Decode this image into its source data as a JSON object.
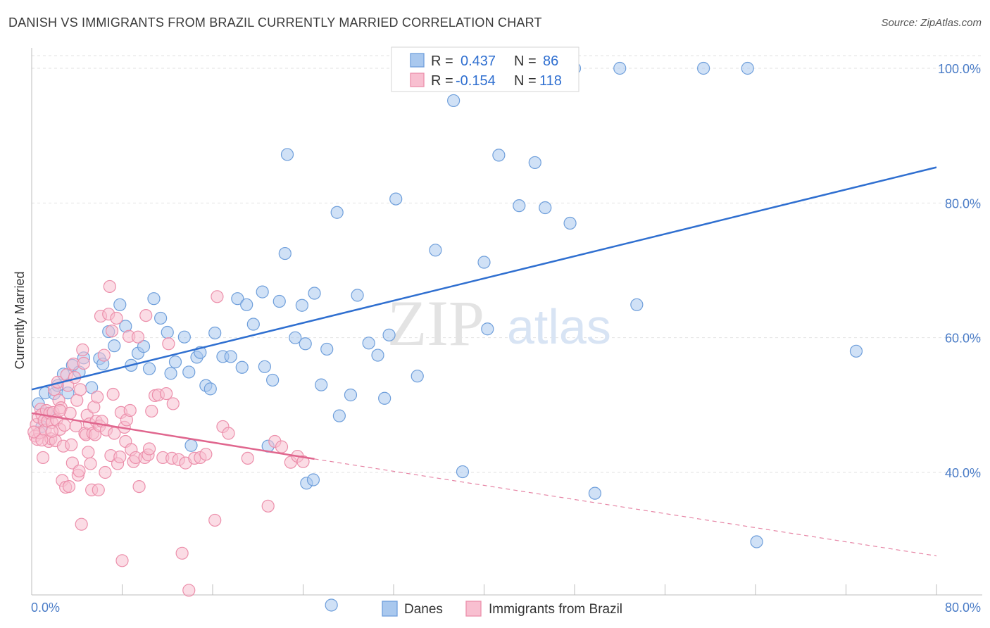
{
  "header": {
    "title": "DANISH VS IMMIGRANTS FROM BRAZIL CURRENTLY MARRIED CORRELATION CHART",
    "source": "Source: ZipAtlas.com"
  },
  "watermark": {
    "zip": "ZIP",
    "atlas": "atlas"
  },
  "legend_box": {
    "rows": [
      {
        "r_label": "R = ",
        "r_value": "0.437",
        "n_label": "N = ",
        "n_value": "86",
        "color": "#a9c8ee",
        "stroke": "#6f9fdb"
      },
      {
        "r_label": "R = ",
        "r_value": "-0.154",
        "n_label": "N = ",
        "n_value": "118",
        "color": "#f8bfd0",
        "stroke": "#ec8fab"
      }
    ]
  },
  "bottom_legend": [
    {
      "label": "Danes",
      "color": "#a9c8ee",
      "stroke": "#6f9fdb"
    },
    {
      "label": "Immigrants from Brazil",
      "color": "#f8bfd0",
      "stroke": "#ec8fab"
    }
  ],
  "chart_data": {
    "type": "scatter",
    "title": "DANISH VS IMMIGRANTS FROM BRAZIL CURRENTLY MARRIED CORRELATION CHART",
    "xlabel": "",
    "ylabel": "Currently Married",
    "xlim": [
      0,
      80
    ],
    "ylim": [
      20,
      102
    ],
    "x_tick_labels": [
      "0.0%",
      "80.0%"
    ],
    "y_ticks": [
      40,
      60,
      80,
      100
    ],
    "y_tick_labels": [
      "40.0%",
      "60.0%",
      "80.0%",
      "100.0%"
    ],
    "grid": true,
    "legend_position": "top-center",
    "series": [
      {
        "name": "Danes",
        "color": "#6f9fdb",
        "fill": "#a9c8ee",
        "r": 0.437,
        "n": 86,
        "trend": {
          "x": [
            0,
            80
          ],
          "y": [
            52.3,
            85.3
          ],
          "style": "solid",
          "color": "#2f6fd0"
        },
        "points": [
          [
            0.6,
            50.2
          ],
          [
            0.9,
            46.8
          ],
          [
            1.2,
            51.8
          ],
          [
            1.4,
            48.8
          ],
          [
            2.0,
            51.7
          ],
          [
            2.3,
            52.9
          ],
          [
            2.8,
            54.6
          ],
          [
            3.2,
            51.8
          ],
          [
            3.6,
            55.9
          ],
          [
            4.2,
            54.9
          ],
          [
            4.6,
            57.0
          ],
          [
            5.3,
            52.6
          ],
          [
            6.0,
            56.9
          ],
          [
            6.3,
            56.1
          ],
          [
            6.8,
            60.9
          ],
          [
            7.3,
            58.8
          ],
          [
            7.8,
            64.9
          ],
          [
            8.3,
            61.7
          ],
          [
            8.8,
            55.9
          ],
          [
            9.4,
            57.7
          ],
          [
            9.9,
            58.7
          ],
          [
            10.4,
            55.4
          ],
          [
            10.8,
            65.8
          ],
          [
            11.4,
            62.9
          ],
          [
            12.3,
            54.7
          ],
          [
            12.0,
            60.8
          ],
          [
            12.7,
            56.4
          ],
          [
            13.5,
            60.1
          ],
          [
            13.9,
            54.9
          ],
          [
            14.6,
            57.1
          ],
          [
            14.9,
            57.8
          ],
          [
            15.4,
            52.9
          ],
          [
            15.8,
            52.4
          ],
          [
            16.2,
            60.7
          ],
          [
            16.9,
            57.2
          ],
          [
            17.6,
            57.2
          ],
          [
            18.2,
            65.8
          ],
          [
            18.6,
            55.6
          ],
          [
            19.0,
            64.9
          ],
          [
            19.6,
            62.0
          ],
          [
            20.4,
            66.8
          ],
          [
            20.6,
            55.7
          ],
          [
            21.3,
            53.7
          ],
          [
            21.9,
            65.4
          ],
          [
            22.4,
            72.5
          ],
          [
            22.6,
            87.2
          ],
          [
            23.3,
            60.0
          ],
          [
            23.9,
            64.8
          ],
          [
            24.2,
            59.1
          ],
          [
            25.0,
            66.6
          ],
          [
            25.6,
            53.0
          ],
          [
            26.1,
            58.3
          ],
          [
            27.0,
            78.6
          ],
          [
            27.2,
            48.4
          ],
          [
            28.2,
            51.5
          ],
          [
            28.8,
            66.3
          ],
          [
            29.8,
            59.2
          ],
          [
            30.6,
            57.4
          ],
          [
            31.2,
            51.0
          ],
          [
            31.6,
            60.4
          ],
          [
            32.2,
            80.6
          ],
          [
            34.1,
            54.3
          ],
          [
            35.7,
            73.0
          ],
          [
            37.3,
            95.2
          ],
          [
            38.1,
            40.1
          ],
          [
            40.0,
            71.2
          ],
          [
            40.3,
            61.3
          ],
          [
            41.3,
            87.1
          ],
          [
            43.1,
            79.6
          ],
          [
            44.5,
            86.0
          ],
          [
            45.4,
            79.3
          ],
          [
            47.6,
            77.0
          ],
          [
            48.0,
            100.0
          ],
          [
            49.8,
            36.9
          ],
          [
            52.0,
            100.0
          ],
          [
            53.5,
            64.9
          ],
          [
            59.4,
            100.0
          ],
          [
            63.3,
            100.0
          ],
          [
            64.1,
            29.7
          ],
          [
            72.9,
            58.0
          ],
          [
            24.3,
            38.4
          ],
          [
            24.9,
            38.9
          ],
          [
            26.5,
            20.3
          ],
          [
            14.1,
            44.0
          ],
          [
            42.5,
            100.0
          ],
          [
            20.9,
            43.9
          ]
        ]
      },
      {
        "name": "Immigrants from Brazil",
        "color": "#ec8fab",
        "fill": "#f8bfd0",
        "r": -0.154,
        "n": 118,
        "trend": {
          "x": [
            0,
            25
          ],
          "y": [
            48.8,
            42.0
          ],
          "style": "solid",
          "color": "#e0668e"
        },
        "trend_extension": {
          "x": [
            25,
            80
          ],
          "y": [
            42.0,
            27.6
          ],
          "style": "dashed",
          "color": "#e0668e"
        },
        "points": [
          [
            0.3,
            45.4
          ],
          [
            0.4,
            47.1
          ],
          [
            0.5,
            44.9
          ],
          [
            0.6,
            48.2
          ],
          [
            0.7,
            45.9
          ],
          [
            0.8,
            49.4
          ],
          [
            0.9,
            48.6
          ],
          [
            1.0,
            42.2
          ],
          [
            1.1,
            47.7
          ],
          [
            1.2,
            46.3
          ],
          [
            1.3,
            49.2
          ],
          [
            1.4,
            47.6
          ],
          [
            1.5,
            44.6
          ],
          [
            1.6,
            48.8
          ],
          [
            1.7,
            45.0
          ],
          [
            1.8,
            47.4
          ],
          [
            1.9,
            48.9
          ],
          [
            2.0,
            52.3
          ],
          [
            2.1,
            44.7
          ],
          [
            2.2,
            47.8
          ],
          [
            2.3,
            53.4
          ],
          [
            2.4,
            50.7
          ],
          [
            2.5,
            46.4
          ],
          [
            2.6,
            49.6
          ],
          [
            2.7,
            38.8
          ],
          [
            2.8,
            43.9
          ],
          [
            2.9,
            47.0
          ],
          [
            3.0,
            37.8
          ],
          [
            3.1,
            54.5
          ],
          [
            3.2,
            52.9
          ],
          [
            3.3,
            37.9
          ],
          [
            3.4,
            48.8
          ],
          [
            3.5,
            44.1
          ],
          [
            3.6,
            41.4
          ],
          [
            3.7,
            56.1
          ],
          [
            3.8,
            54.1
          ],
          [
            3.9,
            46.9
          ],
          [
            4.0,
            50.7
          ],
          [
            4.1,
            39.6
          ],
          [
            4.2,
            40.2
          ],
          [
            4.3,
            52.3
          ],
          [
            4.4,
            32.3
          ],
          [
            4.5,
            58.2
          ],
          [
            4.6,
            56.2
          ],
          [
            4.7,
            45.8
          ],
          [
            4.8,
            45.6
          ],
          [
            4.9,
            48.5
          ],
          [
            5.0,
            43.0
          ],
          [
            5.1,
            47.2
          ],
          [
            5.2,
            41.3
          ],
          [
            5.3,
            37.4
          ],
          [
            5.4,
            45.8
          ],
          [
            5.5,
            49.7
          ],
          [
            5.6,
            45.6
          ],
          [
            5.7,
            47.6
          ],
          [
            5.8,
            51.2
          ],
          [
            5.9,
            37.4
          ],
          [
            6.0,
            46.9
          ],
          [
            6.1,
            63.2
          ],
          [
            6.2,
            47.6
          ],
          [
            6.4,
            57.4
          ],
          [
            6.5,
            40.0
          ],
          [
            6.6,
            46.3
          ],
          [
            6.8,
            63.5
          ],
          [
            6.9,
            67.6
          ],
          [
            7.0,
            42.5
          ],
          [
            7.1,
            61.0
          ],
          [
            7.2,
            51.6
          ],
          [
            7.3,
            45.8
          ],
          [
            7.5,
            62.9
          ],
          [
            7.6,
            41.3
          ],
          [
            7.8,
            42.3
          ],
          [
            7.9,
            48.9
          ],
          [
            8.0,
            26.9
          ],
          [
            8.2,
            46.7
          ],
          [
            8.3,
            44.6
          ],
          [
            8.4,
            47.8
          ],
          [
            8.6,
            60.2
          ],
          [
            8.7,
            49.2
          ],
          [
            8.8,
            43.4
          ],
          [
            9.0,
            41.6
          ],
          [
            9.2,
            42.2
          ],
          [
            9.4,
            60.1
          ],
          [
            9.5,
            37.9
          ],
          [
            10.0,
            42.2
          ],
          [
            10.1,
            63.3
          ],
          [
            10.3,
            42.6
          ],
          [
            10.4,
            43.5
          ],
          [
            10.6,
            49.1
          ],
          [
            10.9,
            51.4
          ],
          [
            11.2,
            51.5
          ],
          [
            11.6,
            42.2
          ],
          [
            11.9,
            51.7
          ],
          [
            12.1,
            59.1
          ],
          [
            12.4,
            42.1
          ],
          [
            12.5,
            50.2
          ],
          [
            13.0,
            41.9
          ],
          [
            13.3,
            28.0
          ],
          [
            13.6,
            41.4
          ],
          [
            13.9,
            22.5
          ],
          [
            14.4,
            42.1
          ],
          [
            14.9,
            42.2
          ],
          [
            15.4,
            42.7
          ],
          [
            16.2,
            32.9
          ],
          [
            16.4,
            66.1
          ],
          [
            16.9,
            46.8
          ],
          [
            17.4,
            45.8
          ],
          [
            19.1,
            42.1
          ],
          [
            20.9,
            35.0
          ],
          [
            21.5,
            44.6
          ],
          [
            22.1,
            43.8
          ],
          [
            22.9,
            41.5
          ],
          [
            23.5,
            42.4
          ],
          [
            24.0,
            41.6
          ],
          [
            0.2,
            46.0
          ],
          [
            0.9,
            44.8
          ],
          [
            1.8,
            46.1
          ],
          [
            2.5,
            49.2
          ]
        ]
      }
    ]
  }
}
